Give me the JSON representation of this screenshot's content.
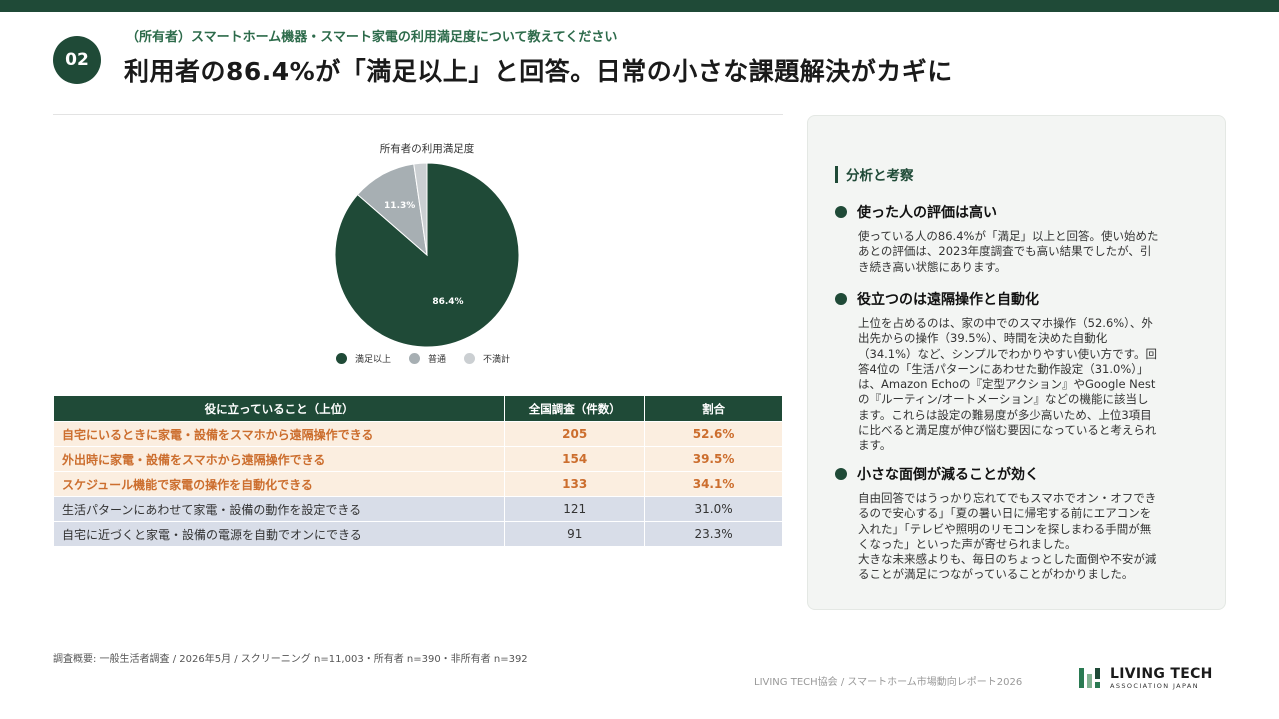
{
  "header": {
    "number": "02",
    "subtitle": "（所有者）スマートホーム機器・スマート家電の利用満足度について教えてください",
    "title": "利用者の86.4%が「満足以上」と回答。日常の小さな課題解決がカギに"
  },
  "chart_data": {
    "type": "pie",
    "title": "所有者の利用満足度",
    "categories": [
      "満足以上",
      "普通",
      "不満計"
    ],
    "values": [
      86.4,
      11.3,
      2.3
    ],
    "labels": [
      "86.4%",
      "11.3%",
      ""
    ],
    "colors": [
      "#1f4a37",
      "#a7afb3",
      "#cbcfd2"
    ],
    "legend_position": "bottom"
  },
  "table": {
    "headers": [
      "役に立っていること（上位）",
      "全国調査（件数）",
      "割合"
    ],
    "rows": [
      {
        "item": "自宅にいるときに家電・設備をスマホから遠隔操作できる",
        "count": "205",
        "pct": "52.6%",
        "highlight": true
      },
      {
        "item": "外出時に家電・設備をスマホから遠隔操作できる",
        "count": "154",
        "pct": "39.5%",
        "highlight": true
      },
      {
        "item": "スケジュール機能で家電の操作を自動化できる",
        "count": "133",
        "pct": "34.1%",
        "highlight": true
      },
      {
        "item": "生活パターンにあわせて家電・設備の動作を設定できる",
        "count": "121",
        "pct": "31.0%",
        "highlight": false
      },
      {
        "item": "自宅に近づくと家電・設備の電源を自動でオンにできる",
        "count": "91",
        "pct": "23.3%",
        "highlight": false
      }
    ]
  },
  "panel": {
    "heading": "分析と考察",
    "sections": [
      {
        "title": "使った人の評価は高い",
        "body": "使っている人の86.4%が「満足」以上と回答。使い始めた\nあとの評価は、2023年度調査でも高い結果でしたが、引\nき続き高い状態にあります。"
      },
      {
        "title": "役立つのは遠隔操作と自動化",
        "body": "上位を占めるのは、家の中でのスマホ操作（52.6%）、外\n出先からの操作（39.5%）、時間を決めた自動化\n（34.1%）など、シンプルでわかりやすい使い方です。回\n答4位の「生活パターンにあわせた動作設定（31.0%）」\nは、Amazon Echoの『定型アクション』やGoogle Nest\nの『ルーティン/オートメーション』などの機能に該当し\nます。これらは設定の難易度が多少高いため、上位3項目\nに比べると満足度が伸び悩む要因になっていると考えられ\nます。"
      },
      {
        "title": "小さな面倒が減ることが効く",
        "body": "自由回答ではうっかり忘れてでもスマホでオン・オフでき\nるので安心する」「夏の暑い日に帰宅する前にエアコンを\n入れた」「テレビや照明のリモコンを探しまわる手間が無\nくなった」といった声が寄せられました。\n大きな未来感よりも、毎日のちょっとした面倒や不安が減\nることが満足につながっていることがわかりました。"
      }
    ]
  },
  "footer": {
    "note": "調査概要: 一般生活者調査 / 2026年5月 / スクリーニング n=11,003・所有者 n=390・非所有者 n=392",
    "source": "LIVING TECH協会 / スマートホーム市場動向レポート2026",
    "logo_main": "LIVING TECH",
    "logo_sub": "ASSOCIATION JAPAN"
  }
}
